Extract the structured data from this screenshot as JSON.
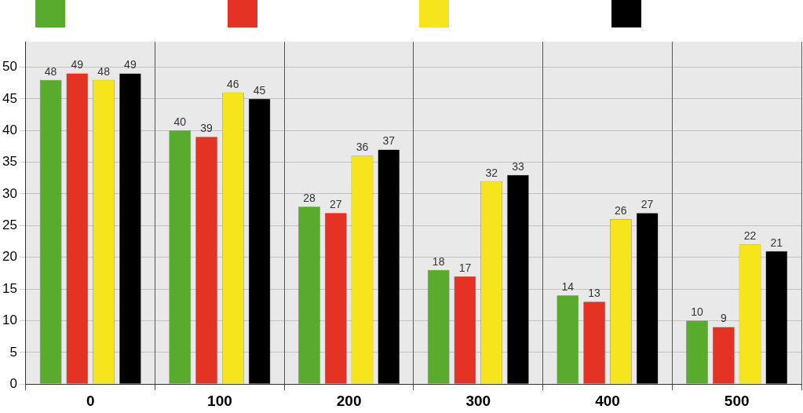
{
  "chart_data": {
    "type": "bar",
    "categories": [
      "0",
      "100",
      "200",
      "300",
      "400",
      "500"
    ],
    "series": [
      {
        "color": "#58ab2d",
        "values": [
          48,
          40,
          28,
          18,
          14,
          10
        ]
      },
      {
        "color": "#e43324",
        "values": [
          49,
          39,
          27,
          17,
          13,
          9
        ]
      },
      {
        "color": "#f6e41c",
        "values": [
          48,
          46,
          36,
          32,
          26,
          22
        ]
      },
      {
        "color": "#000000",
        "values": [
          49,
          45,
          37,
          33,
          27,
          21
        ]
      }
    ],
    "ylim": [
      0,
      54
    ],
    "yticks": [
      0,
      5,
      10,
      15,
      20,
      25,
      30,
      35,
      40,
      45,
      50
    ],
    "grid": true,
    "legend": "top",
    "data_labels": true
  }
}
